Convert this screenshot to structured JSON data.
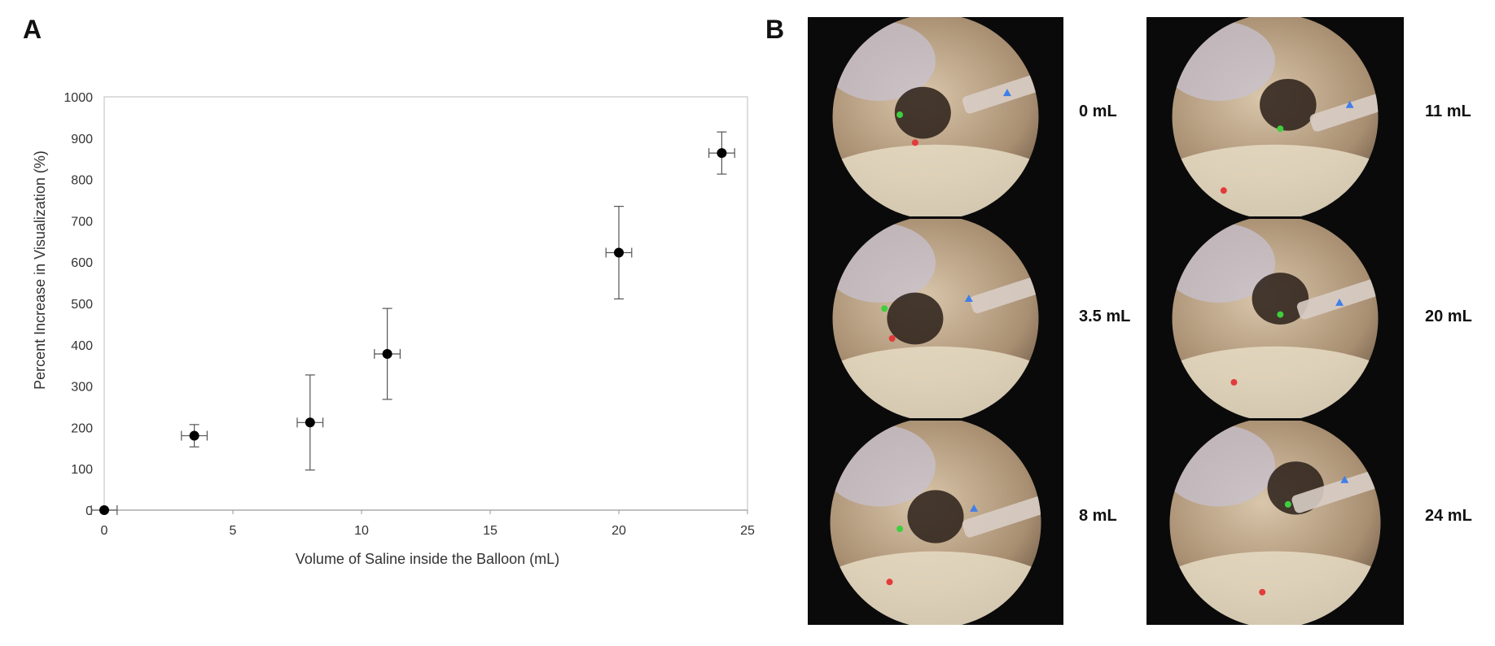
{
  "panels": {
    "a_label": "A",
    "b_label": "B"
  },
  "chart_data": {
    "type": "scatter",
    "xlabel": "Volume of Saline inside the Balloon (mL)",
    "ylabel": "Percent Increase in Visualization (%)",
    "xlim": [
      0,
      25
    ],
    "ylim": [
      0,
      1000
    ],
    "x_ticks": [
      0,
      5,
      10,
      15,
      20,
      25
    ],
    "y_ticks": [
      0,
      100,
      200,
      300,
      400,
      500,
      600,
      700,
      800,
      900,
      1000
    ],
    "grid": false,
    "legend": "none",
    "marker_color": "#000000",
    "series": [
      {
        "points": [
          {
            "x": 0,
            "y": 0,
            "x_err": 0.5,
            "y_err": 0
          },
          {
            "x": 3.5,
            "y": 180,
            "x_err": 0.5,
            "y_err": 27
          },
          {
            "x": 8,
            "y": 212,
            "x_err": 0.5,
            "y_err": 115
          },
          {
            "x": 11,
            "y": 378,
            "x_err": 0.5,
            "y_err": 110
          },
          {
            "x": 20,
            "y": 623,
            "x_err": 0.5,
            "y_err": 112
          },
          {
            "x": 24,
            "y": 864,
            "x_err": 0.5,
            "y_err": 51
          }
        ]
      }
    ]
  },
  "endoscopy": {
    "marker_colors": {
      "green": "#3ecf3e",
      "red": "#e23b3b",
      "blue": "#3f7fe8"
    },
    "images": [
      {
        "label": "0 mL"
      },
      {
        "label": "3.5 mL"
      },
      {
        "label": "8 mL"
      },
      {
        "label": "11 mL"
      },
      {
        "label": "20 mL"
      },
      {
        "label": "24 mL"
      }
    ]
  }
}
